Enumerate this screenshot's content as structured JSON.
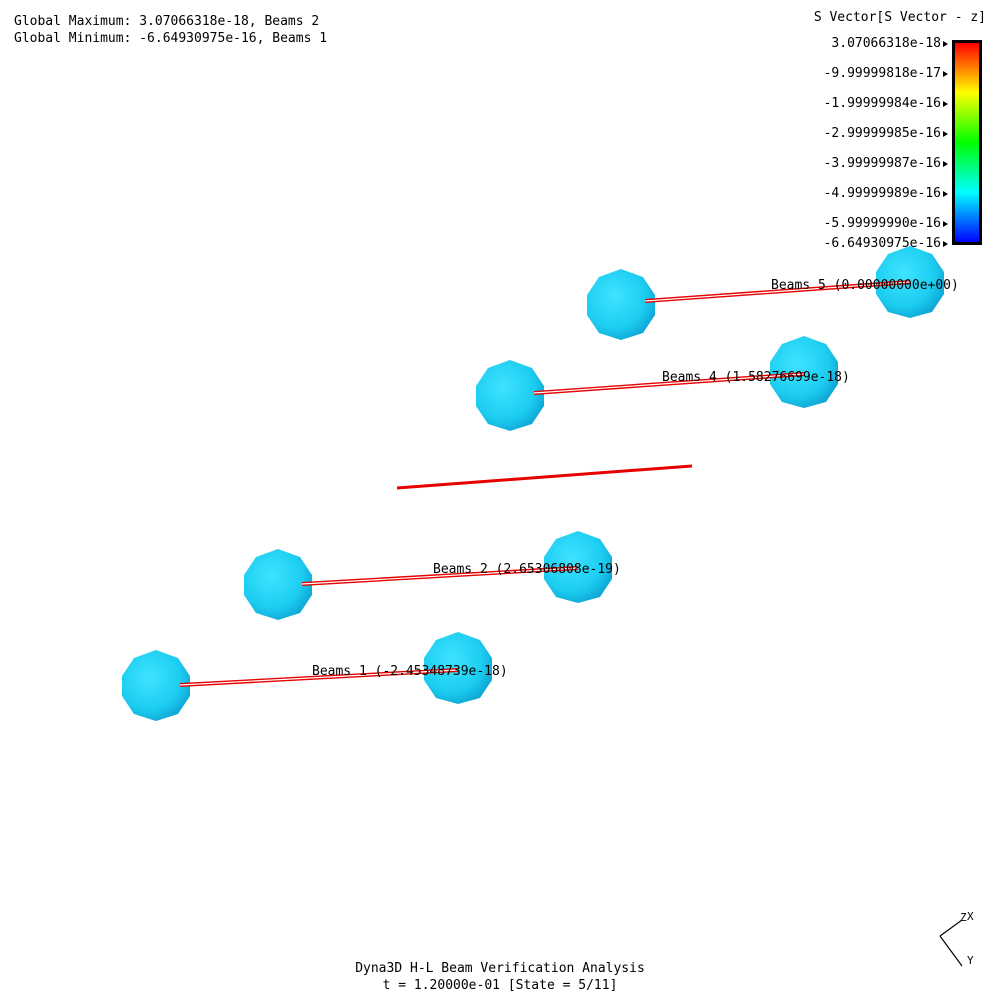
{
  "header": {
    "global_max": "Global Maximum: 3.07066318e-18, Beams 2",
    "global_min": "Global Minimum: -6.64930975e-16, Beams 1"
  },
  "legend": {
    "title": "S Vector[S Vector - z]",
    "ticks": [
      "3.07066318e-18",
      "-9.99999818e-17",
      "-1.99999984e-16",
      "-2.99999985e-16",
      "-3.99999987e-16",
      "-4.99999989e-16",
      "-5.99999990e-16",
      "-6.64930975e-16"
    ],
    "gradient_colors": [
      "#ff0000",
      "#ffff00",
      "#00ff00",
      "#00ffff",
      "#0000ff"
    ]
  },
  "beams": [
    {
      "label": "Beams 1 (-2.45348739e-18)"
    },
    {
      "label": "Beams 2 (2.65306808e-19)"
    },
    {
      "label": "Beams 4 (1.58276699e-18)"
    },
    {
      "label": "Beams 5 (0.00000000e+00)"
    }
  ],
  "colors": {
    "node": "#22d4f4",
    "node_shade": "#0fb0d8",
    "beam_line": "#e60000"
  },
  "axes": {
    "x": "X",
    "y": "Y",
    "z": "Z"
  },
  "footer": {
    "title": "Dyna3D H-L Beam Verification Analysis",
    "state": "t = 1.20000e-01 [State = 5/11]"
  }
}
